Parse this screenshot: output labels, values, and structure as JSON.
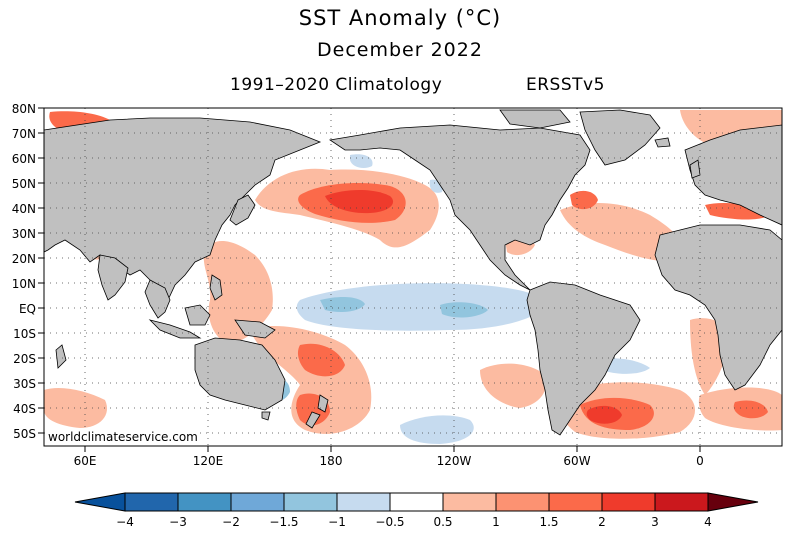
{
  "header": {
    "title": "SST Anomaly (°C)",
    "period": "December 2022",
    "climatology": "1991–2020 Climatology",
    "dataset": "ERSSTv5"
  },
  "map": {
    "watermark": "worldclimateservice.com",
    "lat_labels": [
      "80N",
      "70N",
      "60N",
      "50N",
      "40N",
      "30N",
      "20N",
      "10N",
      "EQ",
      "10S",
      "20S",
      "30S",
      "40S",
      "50S"
    ],
    "lon_labels": [
      "60E",
      "120E",
      "180",
      "120W",
      "60W",
      "0"
    ],
    "colors": {
      "land": "#c0c0c0",
      "ocean": "#ffffff",
      "coast": "#000000"
    }
  },
  "colorbar": {
    "tick_labels": [
      "−4",
      "−3",
      "−2",
      "−1.5",
      "−1",
      "−0.5",
      "0.5",
      "1",
      "1.5",
      "2",
      "3",
      "4"
    ],
    "colors": [
      "#2166ac",
      "#4393c3",
      "#6fa8d8",
      "#92c5de",
      "#c6dbef",
      "#ffffff",
      "#fcbba1",
      "#fc9272",
      "#fb6a4a",
      "#ef3b2c",
      "#cb181d"
    ],
    "under_color": "#08519c",
    "over_color": "#67000d"
  }
}
